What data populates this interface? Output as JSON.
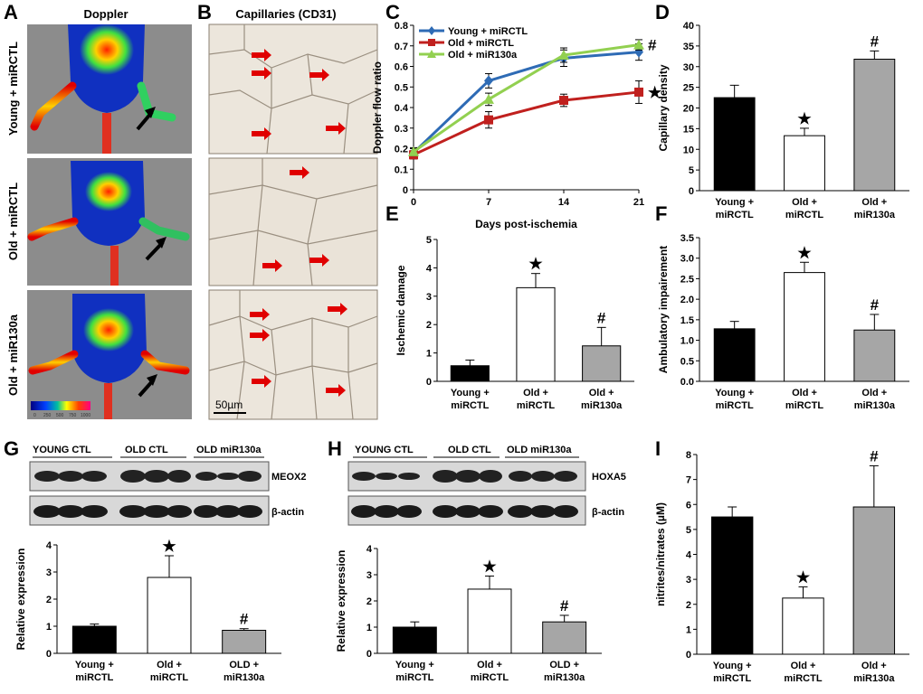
{
  "panel_labels": [
    "A",
    "B",
    "C",
    "D",
    "E",
    "F",
    "G",
    "H",
    "I"
  ],
  "panelA": {
    "title": "Doppler",
    "rows": [
      "Young + miRCTL",
      "Old + miRCTL",
      "Old + miR130a"
    ],
    "colorbar_ticks": [
      "0",
      "250",
      "500",
      "750",
      "1000"
    ]
  },
  "panelB": {
    "title": "Capillaries (CD31)",
    "scale_bar": "50µm"
  },
  "panelG": {
    "groups": [
      "YOUNG CTL",
      "OLD CTL",
      "OLD miR130a"
    ],
    "band1": "MEOX2",
    "band2": "β-actin"
  },
  "panelH": {
    "groups": [
      "YOUNG CTL",
      "OLD CTL",
      "OLD miR130a"
    ],
    "band1": "HOXA5",
    "band2": "β-actin"
  },
  "chart_data": [
    {
      "id": "C",
      "type": "line",
      "x": [
        0,
        7,
        14,
        21
      ],
      "xlabel": "Days post-ischemia",
      "ylabel": "Doppler flow ratio",
      "ylim": [
        0,
        0.8
      ],
      "yticks": [
        0,
        0.1,
        0.2,
        0.3,
        0.4,
        0.5,
        0.6,
        0.7,
        0.8
      ],
      "legend": "top-left",
      "series": [
        {
          "name": "Young + miRCTL",
          "color": "#2e6bb5",
          "marker": "diamond",
          "values": [
            0.18,
            0.53,
            0.64,
            0.67
          ],
          "err": [
            0.02,
            0.035,
            0.04,
            0.04
          ]
        },
        {
          "name": "Old + miRCTL",
          "color": "#c0201e",
          "marker": "square",
          "values": [
            0.17,
            0.34,
            0.435,
            0.475
          ],
          "err": [
            0.02,
            0.04,
            0.03,
            0.055
          ]
        },
        {
          "name": "Old + miR130a",
          "color": "#92d050",
          "marker": "triangle",
          "values": [
            0.185,
            0.44,
            0.655,
            0.705
          ],
          "err": [
            0.02,
            0.03,
            0.035,
            0.025
          ]
        }
      ],
      "annotations": [
        "#",
        "★"
      ]
    },
    {
      "id": "D",
      "type": "bar",
      "categories": [
        "Young + miRCTL",
        "Old + miRCTL",
        "Old + miR130a"
      ],
      "values": [
        22.5,
        13.3,
        31.8
      ],
      "err": [
        3.0,
        1.8,
        2.0
      ],
      "ylabel": "Capillary density",
      "ylim": [
        0,
        40
      ],
      "yticks": [
        0,
        5,
        10,
        15,
        20,
        25,
        30,
        35,
        40
      ],
      "marks": [
        "",
        "★",
        "#"
      ],
      "fills": [
        "#000000",
        "#ffffff",
        "#a6a6a6"
      ]
    },
    {
      "id": "E",
      "type": "bar",
      "categories": [
        "Young + miRCTL",
        "Old + miRCTL",
        "Old + miR130a"
      ],
      "values": [
        0.55,
        3.3,
        1.25
      ],
      "err": [
        0.2,
        0.5,
        0.65
      ],
      "ylabel": "Ischemic damage",
      "ylim": [
        0,
        5
      ],
      "yticks": [
        0,
        1,
        2,
        3,
        4,
        5
      ],
      "marks": [
        "",
        "★",
        "#"
      ],
      "fills": [
        "#000000",
        "#ffffff",
        "#a6a6a6"
      ]
    },
    {
      "id": "F",
      "type": "bar",
      "categories": [
        "Young + miRCTL",
        "Old + miRCTL",
        "Old + miR130a"
      ],
      "values": [
        1.28,
        2.65,
        1.25
      ],
      "err": [
        0.18,
        0.25,
        0.38
      ],
      "ylabel": "Ambulatory impairement",
      "ylim": [
        0,
        3.5
      ],
      "yticks": [
        0,
        0.5,
        1,
        1.5,
        2,
        2.5,
        3,
        3.5
      ],
      "marks": [
        "",
        "★",
        "#"
      ],
      "fills": [
        "#000000",
        "#ffffff",
        "#a6a6a6"
      ]
    },
    {
      "id": "G",
      "type": "bar",
      "categories": [
        "Young + miRCTL",
        "Old + miRCTL",
        "OLD + miR130a"
      ],
      "values": [
        1.0,
        2.8,
        0.85
      ],
      "err": [
        0.08,
        0.8,
        0.06
      ],
      "ylabel": "Relative expression",
      "ylim": [
        0,
        4
      ],
      "yticks": [
        0,
        1,
        2,
        3,
        4
      ],
      "marks": [
        "",
        "★",
        "#"
      ],
      "fills": [
        "#000000",
        "#ffffff",
        "#a6a6a6"
      ]
    },
    {
      "id": "H",
      "type": "bar",
      "categories": [
        "Young + miRCTL",
        "Old + miRCTL",
        "OLD + miR130a"
      ],
      "values": [
        1.0,
        2.45,
        1.2
      ],
      "err": [
        0.2,
        0.5,
        0.25
      ],
      "ylabel": "Relative expression",
      "ylim": [
        0,
        4
      ],
      "yticks": [
        0,
        1,
        2,
        3,
        4
      ],
      "marks": [
        "",
        "★",
        "#"
      ],
      "fills": [
        "#000000",
        "#ffffff",
        "#a6a6a6"
      ]
    },
    {
      "id": "I",
      "type": "bar",
      "categories": [
        "Young + miRCTL",
        "Old + miRCTL",
        "Old + miR130a"
      ],
      "values": [
        5.5,
        2.25,
        5.9
      ],
      "err": [
        0.4,
        0.45,
        1.65
      ],
      "ylabel": "nitrites/nitrates (µM)",
      "ylim": [
        0,
        8
      ],
      "yticks": [
        0,
        1,
        2,
        3,
        4,
        5,
        6,
        7,
        8
      ],
      "marks": [
        "",
        "★",
        "#"
      ],
      "fills": [
        "#000000",
        "#ffffff",
        "#a6a6a6"
      ]
    }
  ]
}
